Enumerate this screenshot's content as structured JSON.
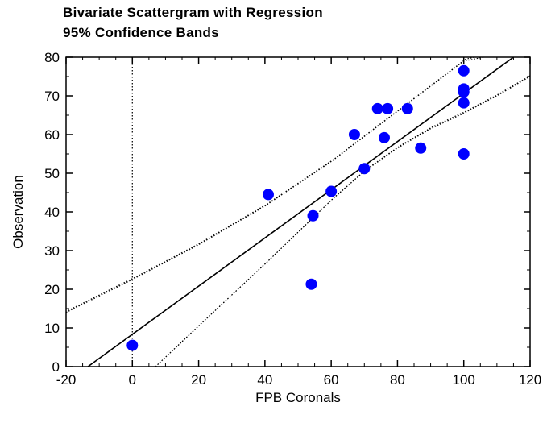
{
  "chart_data": {
    "type": "scatter",
    "title": "Bivariate Scattergram with Regression",
    "subtitle": "95% Confidence Bands",
    "xlabel": "FPB Coronals",
    "ylabel": "Observation",
    "xlim": [
      -20,
      120
    ],
    "ylim": [
      0,
      80
    ],
    "x_ticks": [
      "-20",
      "0",
      "20",
      "40",
      "60",
      "80",
      "100",
      "120"
    ],
    "y_ticks": [
      "0",
      "10",
      "20",
      "30",
      "40",
      "50",
      "60",
      "70",
      "80"
    ],
    "grid": false,
    "point_color": "#0000ff",
    "points": [
      {
        "x": 0,
        "y": 5.5
      },
      {
        "x": 41,
        "y": 44.5
      },
      {
        "x": 54,
        "y": 21.3
      },
      {
        "x": 54.5,
        "y": 39
      },
      {
        "x": 60,
        "y": 45.3
      },
      {
        "x": 67,
        "y": 60
      },
      {
        "x": 70,
        "y": 51.2
      },
      {
        "x": 74,
        "y": 66.7
      },
      {
        "x": 76,
        "y": 59.2
      },
      {
        "x": 77,
        "y": 66.7
      },
      {
        "x": 83,
        "y": 66.7
      },
      {
        "x": 87,
        "y": 56.5
      },
      {
        "x": 100,
        "y": 76.5
      },
      {
        "x": 100,
        "y": 71.8
      },
      {
        "x": 100,
        "y": 71
      },
      {
        "x": 100,
        "y": 68.2
      },
      {
        "x": 100,
        "y": 55
      }
    ],
    "regression": {
      "x": [
        -13.4,
        115
      ],
      "y": [
        0,
        80
      ]
    },
    "confidence_upper": {
      "x": [
        -20,
        0,
        20,
        40,
        60,
        70,
        80,
        90,
        100,
        106
      ],
      "y": [
        14,
        22.5,
        31.5,
        41.5,
        53,
        59.5,
        66,
        72.5,
        79,
        80
      ]
    },
    "confidence_lower": {
      "x": [
        7,
        20,
        40,
        60,
        70,
        80,
        90,
        100,
        110,
        120
      ],
      "y": [
        0,
        10.5,
        26.5,
        43,
        50.5,
        56.5,
        61.5,
        65.5,
        70,
        75
      ]
    },
    "reference_line": {
      "x": 0
    }
  }
}
